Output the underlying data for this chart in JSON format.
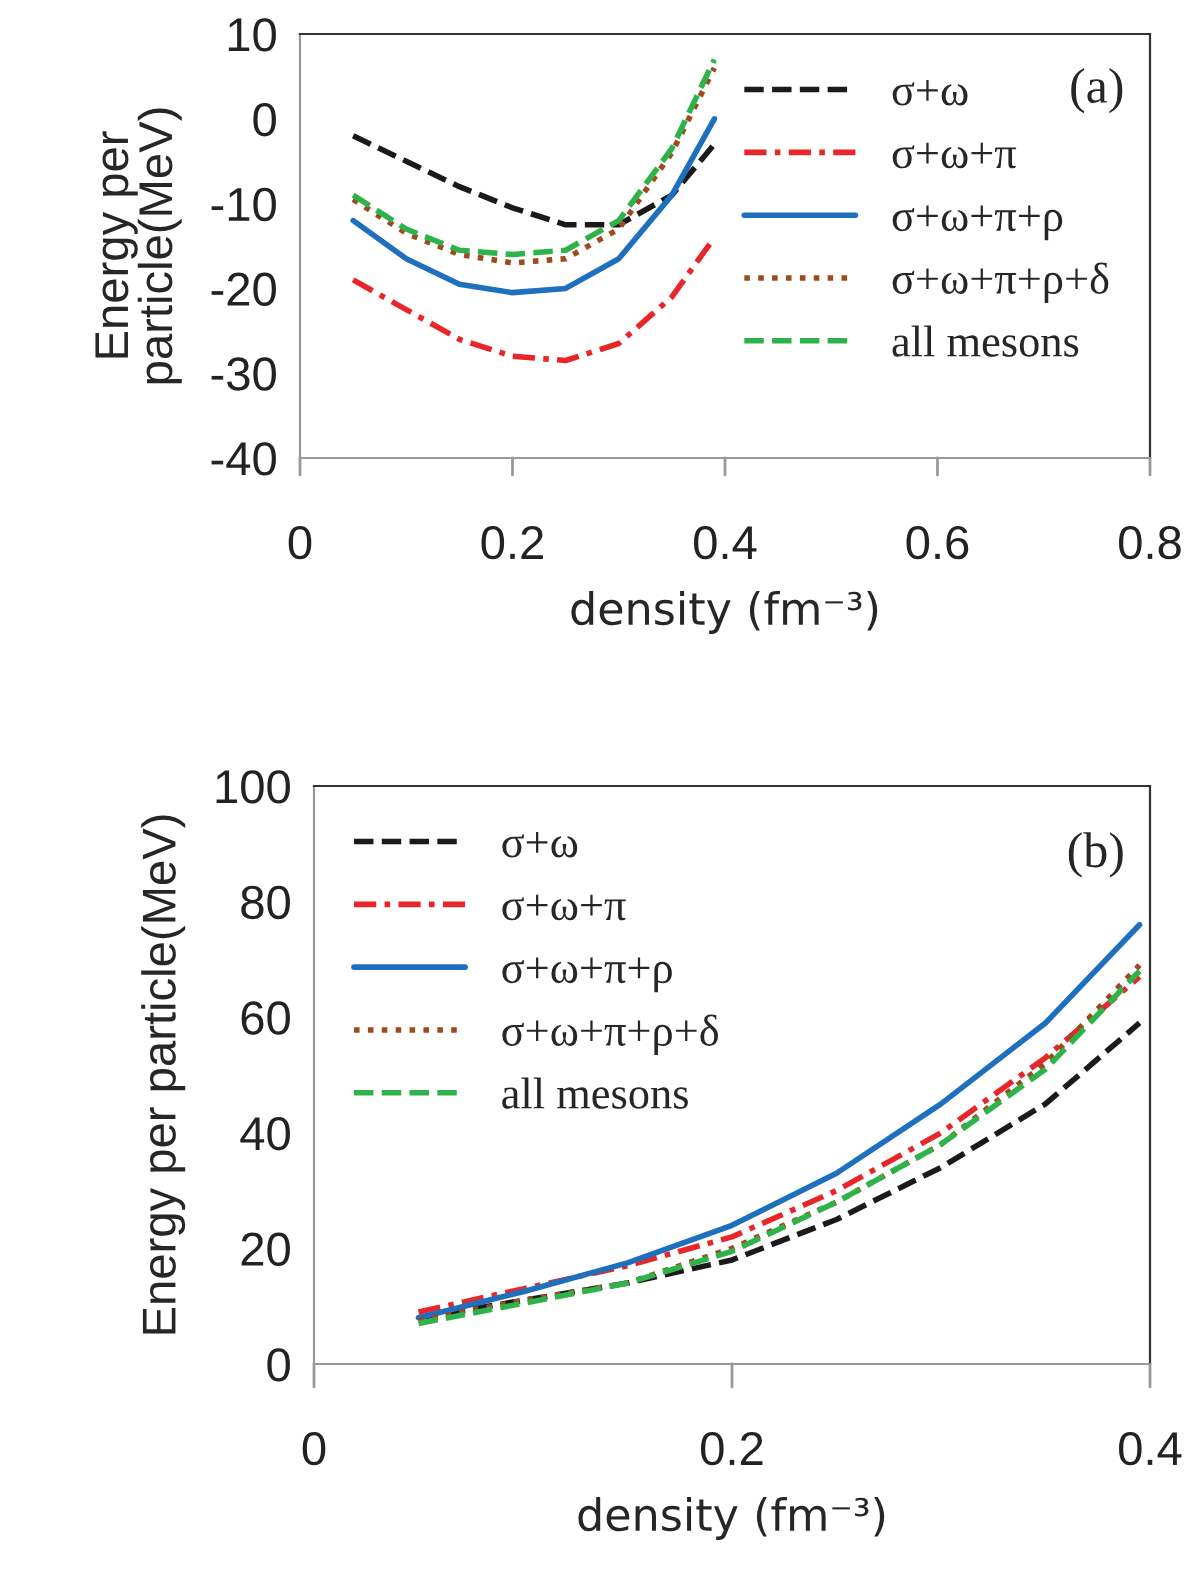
{
  "chart_data": [
    {
      "type": "line",
      "xlabel": "density (fm⁻³)",
      "ylabel": "Energy per\nparticle(MeV)",
      "xlim": [
        0,
        0.8
      ],
      "xticks": [
        0,
        0.2,
        0.4,
        0.6,
        0.8
      ],
      "ylim": [
        -40,
        10
      ],
      "yticks": [
        -40,
        -30,
        -20,
        -10,
        0,
        10
      ],
      "grid": false,
      "legend": "top right",
      "marker": "none",
      "annotations": [
        "(a)"
      ],
      "series": [
        {
          "name": "σ+ω",
          "color": "#1a1a1a",
          "line_style": "dashed",
          "x": [
            0.05,
            0.1,
            0.15,
            0.2,
            0.25,
            0.3,
            0.35,
            0.39
          ],
          "values": [
            -2,
            -5,
            -8,
            -10.5,
            -12.5,
            -12.5,
            -9,
            -3
          ]
        },
        {
          "name": "σ+ω+π",
          "color": "#e8262a",
          "line_style": "dashdot",
          "x": [
            0.05,
            0.1,
            0.15,
            0.2,
            0.25,
            0.3,
            0.35,
            0.39
          ],
          "values": [
            -19,
            -22.5,
            -26,
            -28,
            -28.5,
            -26.5,
            -21,
            -14
          ]
        },
        {
          "name": "σ+ω+π+ρ",
          "color": "#1f6fbf",
          "line_style": "solid",
          "x": [
            0.05,
            0.1,
            0.15,
            0.2,
            0.25,
            0.3,
            0.35,
            0.39
          ],
          "values": [
            -12,
            -16.5,
            -19.5,
            -20.5,
            -20,
            -16.5,
            -9,
            0
          ]
        },
        {
          "name": "σ+ω+π+ρ+δ",
          "color": "#9c4a1e",
          "line_style": "dotted",
          "x": [
            0.05,
            0.1,
            0.15,
            0.2,
            0.25,
            0.3,
            0.35,
            0.39
          ],
          "values": [
            -9.5,
            -13.5,
            -16,
            -17,
            -16.5,
            -13,
            -4,
            6
          ]
        },
        {
          "name": "all mesons",
          "color": "#2db34a",
          "line_style": "dashed",
          "x": [
            0.05,
            0.1,
            0.15,
            0.2,
            0.25,
            0.3,
            0.35,
            0.39
          ],
          "values": [
            -9,
            -13,
            -15.5,
            -16,
            -15.5,
            -12,
            -3.5,
            7
          ]
        }
      ]
    },
    {
      "type": "line",
      "xlabel": "density (fm⁻³)",
      "ylabel": "Energy per particle(MeV)",
      "xlim": [
        0,
        0.4
      ],
      "xticks": [
        0,
        0.2,
        0.4
      ],
      "ylim": [
        0,
        100
      ],
      "yticks": [
        0,
        20,
        40,
        60,
        80,
        100
      ],
      "grid": false,
      "legend": "top left",
      "marker": "none",
      "annotations": [
        "(b)"
      ],
      "series": [
        {
          "name": "σ+ω",
          "color": "#1a1a1a",
          "line_style": "dashed",
          "x": [
            0.05,
            0.1,
            0.15,
            0.2,
            0.25,
            0.3,
            0.35,
            0.395
          ],
          "values": [
            8,
            11,
            14,
            18,
            25,
            34,
            45,
            59
          ]
        },
        {
          "name": "σ+ω+π",
          "color": "#e8262a",
          "line_style": "dashdot",
          "x": [
            0.05,
            0.1,
            0.15,
            0.2,
            0.25,
            0.3,
            0.35,
            0.395
          ],
          "values": [
            9,
            13,
            17,
            22,
            30,
            40,
            53,
            67
          ]
        },
        {
          "name": "σ+ω+π+ρ",
          "color": "#1f6fbf",
          "line_style": "solid",
          "x": [
            0.05,
            0.1,
            0.15,
            0.2,
            0.25,
            0.3,
            0.35,
            0.395
          ],
          "values": [
            8,
            12.5,
            17.5,
            24,
            33,
            45,
            59,
            76
          ]
        },
        {
          "name": "σ+ω+π+ρ+δ",
          "color": "#9c4a1e",
          "line_style": "dotted",
          "x": [
            0.05,
            0.1,
            0.15,
            0.2,
            0.25,
            0.3,
            0.35,
            0.395
          ],
          "values": [
            7.5,
            11,
            14,
            20,
            28,
            38,
            52,
            69
          ]
        },
        {
          "name": "all mesons",
          "color": "#2db34a",
          "line_style": "dashed",
          "x": [
            0.05,
            0.1,
            0.15,
            0.2,
            0.25,
            0.3,
            0.35,
            0.395
          ],
          "values": [
            7,
            10.5,
            14,
            19.5,
            28,
            38,
            51,
            68
          ]
        }
      ]
    }
  ]
}
